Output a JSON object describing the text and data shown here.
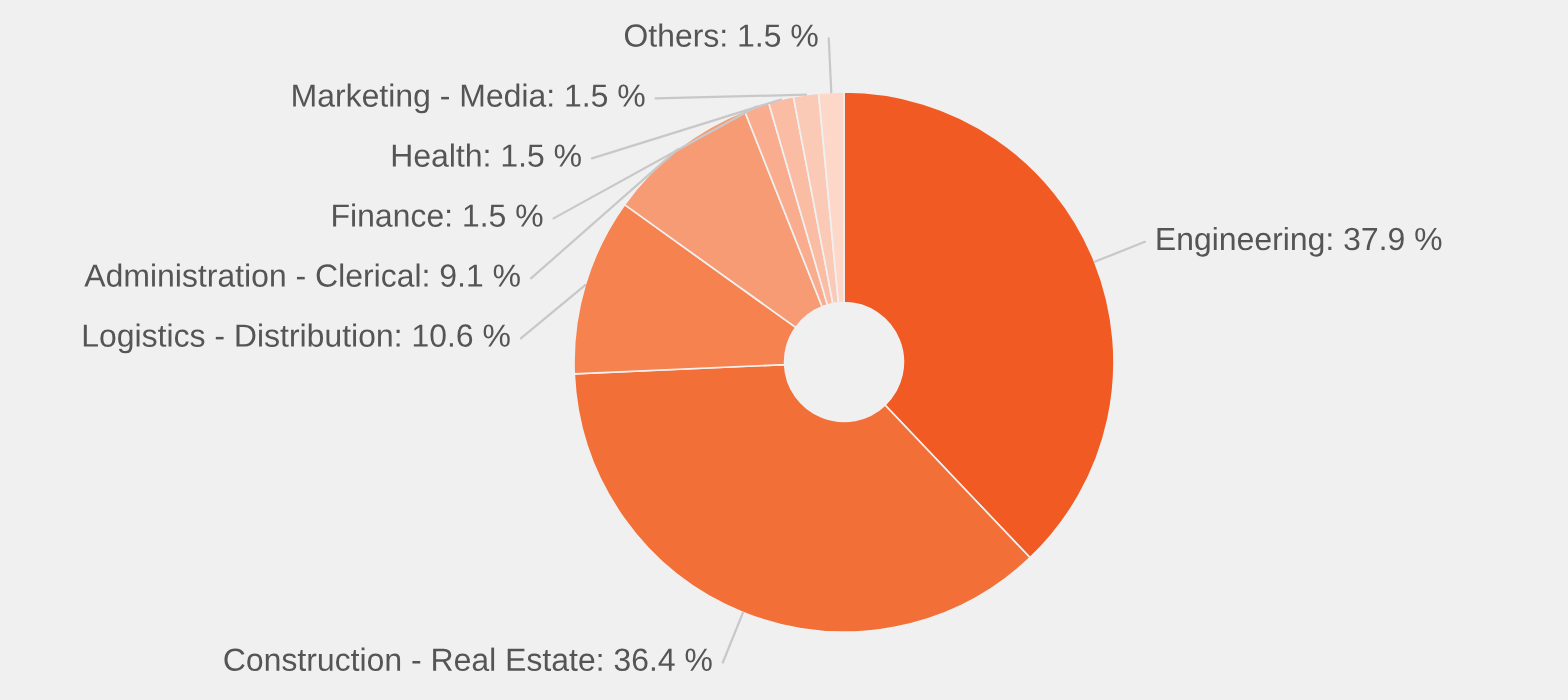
{
  "chart_data": {
    "type": "donut",
    "categories": [
      "Engineering",
      "Construction - Real Estate",
      "Logistics - Distribution",
      "Administration - Clerical",
      "Finance",
      "Health",
      "Marketing - Media",
      "Others"
    ],
    "values": [
      37.9,
      36.4,
      10.6,
      9.1,
      1.5,
      1.5,
      1.5,
      1.5
    ],
    "value_labels": [
      "37.9 %",
      "36.4 %",
      "10.6 %",
      "9.1 %",
      "1.5 %",
      "1.5 %",
      "1.5 %",
      "1.5 %"
    ],
    "colors": [
      "#f15a22",
      "#f36f38",
      "#f5824f",
      "#f79b74",
      "#f9ad8e",
      "#fabca3",
      "#fbcab6",
      "#fdd8c9"
    ]
  }
}
